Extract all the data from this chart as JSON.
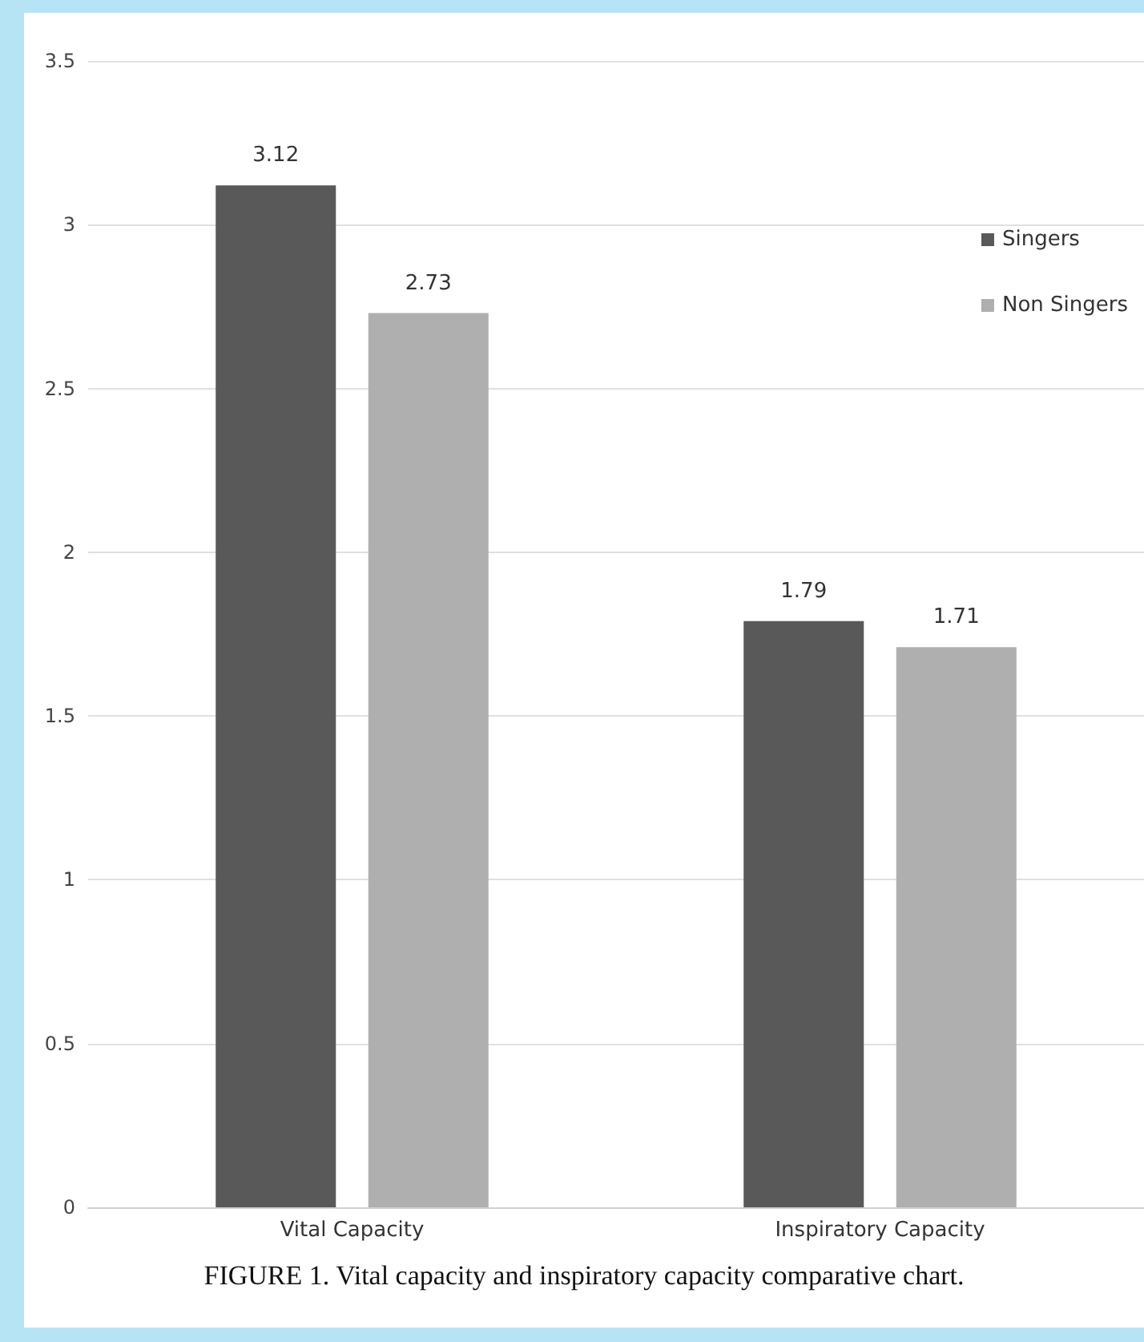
{
  "chart_data": {
    "type": "bar",
    "categories": [
      "Vital Capacity",
      "Inspiratory Capacity"
    ],
    "series": [
      {
        "name": "Singers",
        "color": "#595959",
        "values": [
          3.12,
          1.79
        ]
      },
      {
        "name": "Non Singers",
        "color": "#afafaf",
        "values": [
          2.73,
          1.71
        ]
      }
    ],
    "ylim": [
      0,
      3.5
    ],
    "yticks": [
      0,
      0.5,
      1,
      1.5,
      2,
      2.5,
      3,
      3.5
    ],
    "grid": "y",
    "legend": "top right",
    "data_labels": true,
    "annotations": [
      "FIGURE 1. Vital capacity and inspiratory capacity comparative chart."
    ]
  }
}
